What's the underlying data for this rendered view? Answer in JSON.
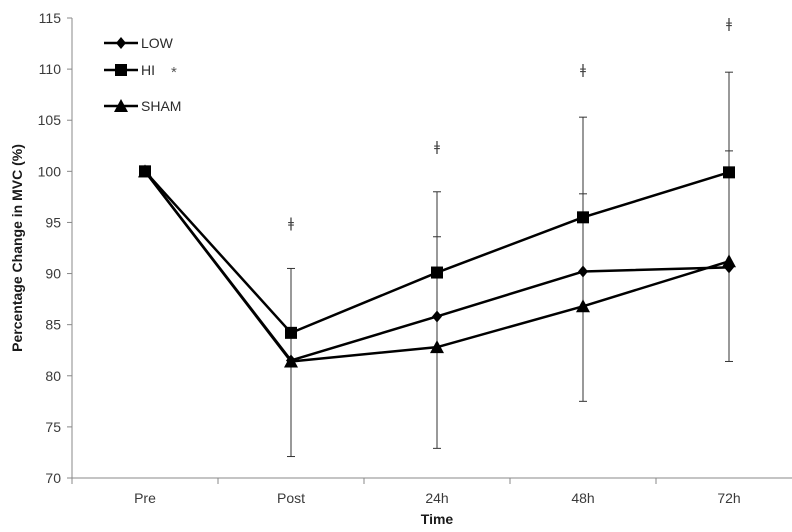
{
  "chart_data": {
    "type": "line",
    "xlabel": "Time",
    "ylabel": "Percentage Change in MVC (%)",
    "categories": [
      "Pre",
      "Post",
      "24h",
      "48h",
      "72h"
    ],
    "ylim": [
      70,
      115
    ],
    "yticks": [
      70,
      75,
      80,
      85,
      90,
      95,
      100,
      105,
      110,
      115
    ],
    "grid": false,
    "legend_position": "top-left",
    "series": [
      {
        "name": "LOW",
        "marker": "diamond",
        "values": [
          100,
          81.5,
          85.8,
          90.2,
          90.6
        ]
      },
      {
        "name": "HI",
        "marker": "square",
        "values": [
          100,
          84.2,
          90.1,
          95.5,
          99.9
        ]
      },
      {
        "name": "SHAM",
        "marker": "triangle",
        "values": [
          100,
          81.4,
          82.8,
          86.8,
          91.2
        ]
      }
    ],
    "error_bars": [
      {
        "category": "Post",
        "low": 72.1,
        "high": 90.5
      },
      {
        "category": "24h",
        "low": 72.9,
        "high": 98.0,
        "mid": 93.6
      },
      {
        "category": "48h",
        "low": 77.5,
        "high": 105.3,
        "mid": 97.8
      },
      {
        "category": "72h",
        "low": 81.4,
        "high": 109.7,
        "mid": 102.0
      }
    ],
    "annotations": [
      {
        "category": "Post",
        "y": 95,
        "text": "ǂ"
      },
      {
        "category": "24h",
        "y": 102.5,
        "text": "ǂ"
      },
      {
        "category": "48h",
        "y": 110,
        "text": "ǂ"
      },
      {
        "category": "72h",
        "y": 114.5,
        "text": "ǂ"
      }
    ],
    "legend_star": "*",
    "colors": {
      "line": "#000000",
      "axis": "#888888",
      "error": "#333333"
    }
  }
}
